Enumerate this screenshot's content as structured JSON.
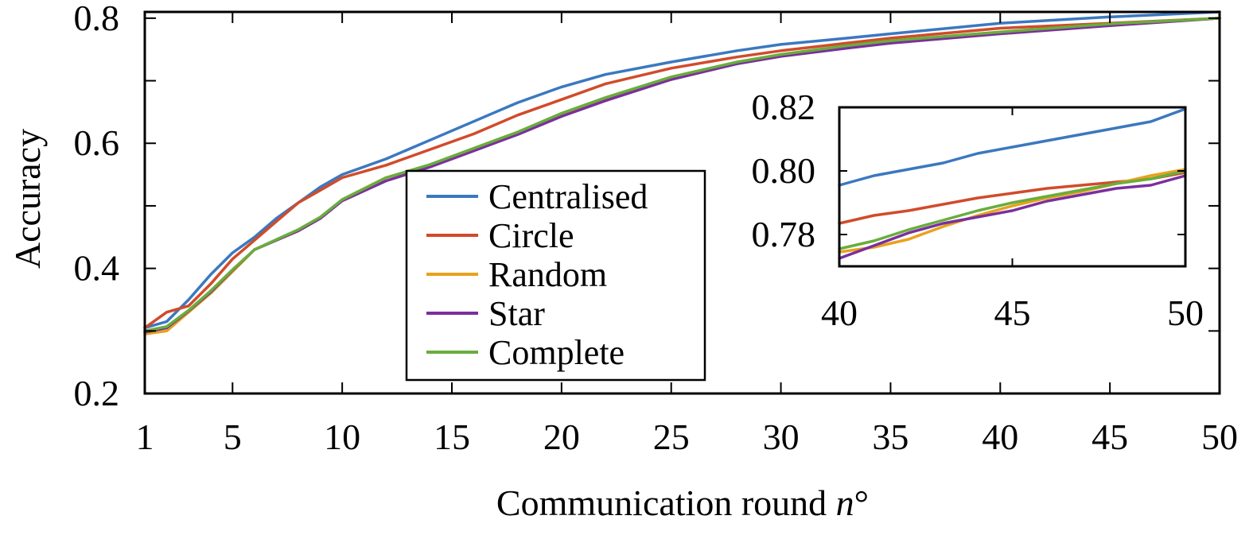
{
  "chart_data": [
    {
      "type": "line",
      "xlabel": "Communication round",
      "xlabel_italic": "n",
      "xlabel_suffix": "°",
      "ylabel": "Accuracy",
      "xlim": [
        1,
        50
      ],
      "ylim": [
        0.2,
        0.81
      ],
      "xticks": [
        1,
        5,
        10,
        15,
        20,
        25,
        30,
        35,
        40,
        45,
        50
      ],
      "xtick_labels": [
        "1",
        "5",
        "10",
        "15",
        "20",
        "25",
        "30",
        "35",
        "40",
        "45",
        "50"
      ],
      "yticks": [
        0.2,
        0.4,
        0.6,
        0.8
      ],
      "ytick_labels": [
        "0.2",
        "0.4",
        "0.6",
        "0.8"
      ],
      "minor_yticks": [
        0.3,
        0.5,
        0.7
      ],
      "grid": false,
      "legend_position": "center",
      "x": [
        1,
        2,
        3,
        4,
        5,
        6,
        7,
        8,
        9,
        10,
        12,
        14,
        16,
        18,
        20,
        22,
        25,
        28,
        30,
        33,
        35,
        40,
        45,
        50
      ],
      "series": [
        {
          "name": "Centralised",
          "color": "#3b78c0",
          "values": [
            0.305,
            0.315,
            0.35,
            0.39,
            0.425,
            0.45,
            0.48,
            0.505,
            0.53,
            0.55,
            0.575,
            0.605,
            0.635,
            0.665,
            0.69,
            0.71,
            0.73,
            0.748,
            0.758,
            0.768,
            0.775,
            0.792,
            0.802,
            0.81
          ]
        },
        {
          "name": "Circle",
          "color": "#d14b2a",
          "values": [
            0.305,
            0.33,
            0.34,
            0.375,
            0.415,
            0.445,
            0.475,
            0.505,
            0.525,
            0.545,
            0.565,
            0.59,
            0.615,
            0.645,
            0.67,
            0.695,
            0.72,
            0.738,
            0.748,
            0.76,
            0.768,
            0.784,
            0.792,
            0.8
          ]
        },
        {
          "name": "Random",
          "color": "#e8a21c",
          "values": [
            0.295,
            0.3,
            0.33,
            0.36,
            0.395,
            0.43,
            0.445,
            0.46,
            0.48,
            0.51,
            0.545,
            0.565,
            0.59,
            0.615,
            0.645,
            0.67,
            0.703,
            0.728,
            0.74,
            0.754,
            0.762,
            0.776,
            0.79,
            0.8
          ]
        },
        {
          "name": "Star",
          "color": "#7a2f9e",
          "values": [
            0.298,
            0.305,
            0.332,
            0.362,
            0.397,
            0.43,
            0.445,
            0.46,
            0.48,
            0.508,
            0.54,
            0.562,
            0.588,
            0.614,
            0.643,
            0.668,
            0.702,
            0.727,
            0.739,
            0.752,
            0.76,
            0.775,
            0.788,
            0.8
          ]
        },
        {
          "name": "Complete",
          "color": "#69ad3c",
          "values": [
            0.3,
            0.307,
            0.333,
            0.364,
            0.398,
            0.43,
            0.446,
            0.462,
            0.482,
            0.51,
            0.545,
            0.566,
            0.592,
            0.618,
            0.648,
            0.673,
            0.706,
            0.73,
            0.742,
            0.756,
            0.764,
            0.778,
            0.791,
            0.8
          ]
        }
      ]
    },
    {
      "type": "line",
      "inset": true,
      "xlim": [
        40,
        50
      ],
      "ylim": [
        0.77,
        0.82
      ],
      "xticks": [
        40,
        45,
        50
      ],
      "xtick_labels": [
        "40",
        "45",
        "50"
      ],
      "yticks": [
        0.78,
        0.8,
        0.82
      ],
      "ytick_labels": [
        "0.78",
        "0.80",
        "0.82"
      ],
      "x": [
        40,
        41,
        42,
        43,
        44,
        45,
        46,
        47,
        48,
        49,
        50
      ],
      "series": [
        {
          "name": "Centralised",
          "color": "#3b78c0",
          "values": [
            0.7955,
            0.7985,
            0.8005,
            0.8025,
            0.8055,
            0.8075,
            0.8095,
            0.8115,
            0.8135,
            0.8155,
            0.8195
          ]
        },
        {
          "name": "Circle",
          "color": "#d14b2a",
          "values": [
            0.7835,
            0.786,
            0.7875,
            0.7895,
            0.7915,
            0.793,
            0.7945,
            0.7955,
            0.7965,
            0.7975,
            0.7995
          ]
        },
        {
          "name": "Random",
          "color": "#e8a21c",
          "values": [
            0.7745,
            0.776,
            0.7785,
            0.7825,
            0.786,
            0.789,
            0.7915,
            0.7935,
            0.796,
            0.7985,
            0.8005
          ]
        },
        {
          "name": "Star",
          "color": "#7a2f9e",
          "values": [
            0.7725,
            0.7765,
            0.7805,
            0.7835,
            0.7855,
            0.7875,
            0.7905,
            0.7925,
            0.7945,
            0.7955,
            0.7985
          ]
        },
        {
          "name": "Complete",
          "color": "#69ad3c",
          "values": [
            0.7755,
            0.778,
            0.7815,
            0.7845,
            0.7875,
            0.79,
            0.792,
            0.794,
            0.796,
            0.7975,
            0.8
          ]
        }
      ]
    }
  ]
}
